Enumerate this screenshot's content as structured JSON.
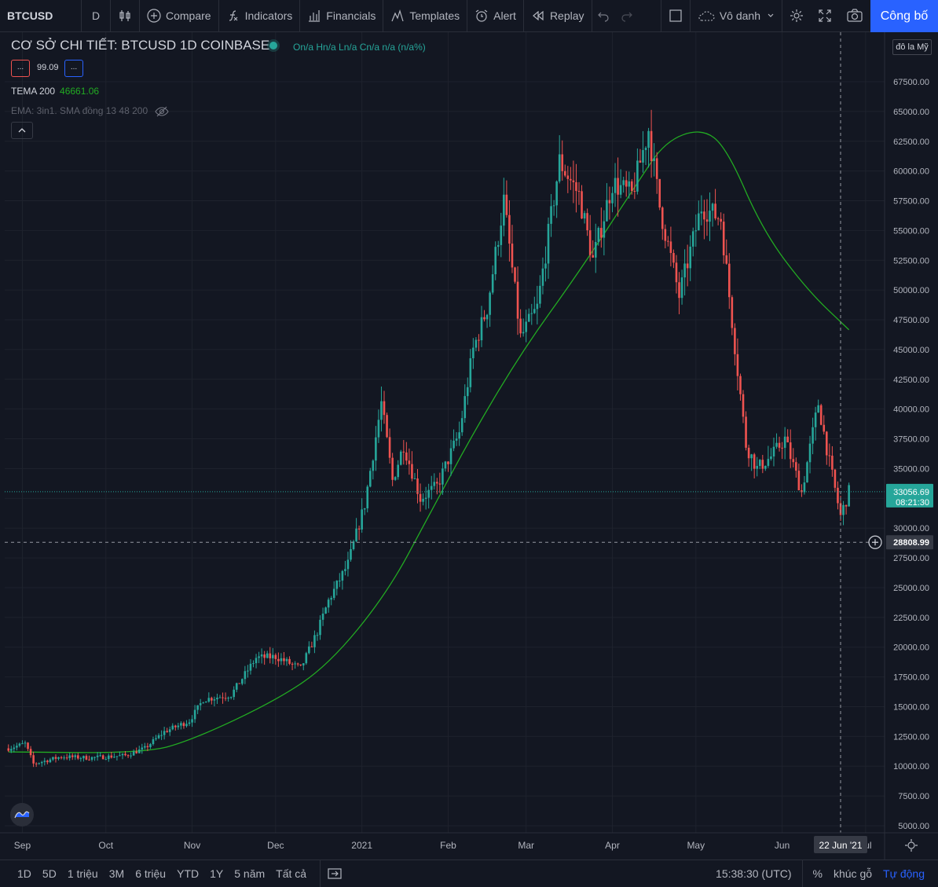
{
  "toolbar": {
    "symbol": "BTCUSD",
    "interval": "D",
    "compare": "Compare",
    "indicators": "Indicators",
    "financials": "Financials",
    "templates": "Templates",
    "alert": "Alert",
    "replay": "Replay",
    "layout_name": "Vô danh",
    "publish": "Công bố"
  },
  "legend": {
    "title": "CƠ SỞ CHI TIẾT: BTCUSD  1D  COINBASE",
    "ohlc": "On/a Hn/a Ln/a Cn/a n/a (n/a%)",
    "indicator_box1": "...",
    "indicator_box2": "...",
    "indicator_value": "99.09",
    "tema_label": "TEMA 200",
    "tema_value": "46661.06",
    "ema_label": "EMA: 3in1. SMA đồng 13 48 200"
  },
  "currency": "đô la Mỹ",
  "price_scale": {
    "ticks": [
      "67500.00",
      "65000.00",
      "62500.00",
      "60000.00",
      "57500.00",
      "55000.00",
      "52500.00",
      "50000.00",
      "47500.00",
      "45000.00",
      "42500.00",
      "40000.00",
      "37500.00",
      "35000.00",
      "32500.00",
      "30000.00",
      "27500.00",
      "25000.00",
      "22500.00",
      "20000.00",
      "17500.00",
      "15000.00",
      "12500.00",
      "10000.00",
      "7500.00",
      "5000.00"
    ],
    "last_price": "33056.69",
    "countdown": "08:21:30",
    "crosshair_price": "28808.99"
  },
  "time_scale": {
    "labels": [
      "Sep",
      "Oct",
      "Nov",
      "Dec",
      "2021",
      "Feb",
      "Mar",
      "Apr",
      "May",
      "Jun",
      "Jul"
    ],
    "crosshair_date": "22 Jun '21"
  },
  "bottombar": {
    "ranges": [
      "1D",
      "5D",
      "1 triệu",
      "3M",
      "6 triệu",
      "YTD",
      "1Y",
      "5 năm",
      "Tất cả"
    ],
    "clock": "15:38:30 (UTC)",
    "percent": "%",
    "log": "khúc gỗ",
    "auto": "Tự động"
  },
  "colors": {
    "up": "#26a69a",
    "down": "#ef5350",
    "tema": "#22ab22",
    "accent": "#2962ff"
  },
  "chart_data": {
    "type": "candlestick",
    "symbol": "BTCUSD",
    "timeframe": "1D",
    "exchange": "COINBASE",
    "ylim": [
      5000,
      67500
    ],
    "points": [
      [
        "2020-08-27",
        11500
      ],
      [
        "2020-09-02",
        11900
      ],
      [
        "2020-09-05",
        10200
      ],
      [
        "2020-09-15",
        10800
      ],
      [
        "2020-09-25",
        10700
      ],
      [
        "2020-10-08",
        10900
      ],
      [
        "2020-10-15",
        11500
      ],
      [
        "2020-10-22",
        12900
      ],
      [
        "2020-10-31",
        13800
      ],
      [
        "2020-11-05",
        15600
      ],
      [
        "2020-11-15",
        16000
      ],
      [
        "2020-11-24",
        19100
      ],
      [
        "2020-12-01",
        19200
      ],
      [
        "2020-12-10",
        18200
      ],
      [
        "2020-12-16",
        21300
      ],
      [
        "2020-12-20",
        23900
      ],
      [
        "2020-12-27",
        27000
      ],
      [
        "2021-01-02",
        32000
      ],
      [
        "2021-01-08",
        40500
      ],
      [
        "2021-01-12",
        34000
      ],
      [
        "2021-01-16",
        37000
      ],
      [
        "2021-01-22",
        32500
      ],
      [
        "2021-01-28",
        33500
      ],
      [
        "2021-02-05",
        38000
      ],
      [
        "2021-02-10",
        45000
      ],
      [
        "2021-02-15",
        48500
      ],
      [
        "2021-02-21",
        57500
      ],
      [
        "2021-02-27",
        46000
      ],
      [
        "2021-03-05",
        48500
      ],
      [
        "2021-03-13",
        60800
      ],
      [
        "2021-03-20",
        58000
      ],
      [
        "2021-03-25",
        52500
      ],
      [
        "2021-04-01",
        59000
      ],
      [
        "2021-04-08",
        58000
      ],
      [
        "2021-04-14",
        63500
      ],
      [
        "2021-04-18",
        57000
      ],
      [
        "2021-04-25",
        49500
      ],
      [
        "2021-05-03",
        57000
      ],
      [
        "2021-05-10",
        56000
      ],
      [
        "2021-05-13",
        49500
      ],
      [
        "2021-05-19",
        37000
      ],
      [
        "2021-05-23",
        35000
      ],
      [
        "2021-05-28",
        36000
      ],
      [
        "2021-06-02",
        37500
      ],
      [
        "2021-06-08",
        33000
      ],
      [
        "2021-06-14",
        40500
      ],
      [
        "2021-06-18",
        35500
      ],
      [
        "2021-06-22",
        31000
      ],
      [
        "2021-06-25",
        33056.69
      ]
    ],
    "tema200": [
      [
        "2020-08-27",
        11200
      ],
      [
        "2020-10-15",
        11100
      ],
      [
        "2020-11-01",
        12200
      ],
      [
        "2020-12-01",
        15500
      ],
      [
        "2020-12-20",
        18500
      ],
      [
        "2021-01-10",
        24500
      ],
      [
        "2021-01-25",
        31000
      ],
      [
        "2021-02-10",
        38000
      ],
      [
        "2021-02-28",
        45000
      ],
      [
        "2021-03-20",
        51500
      ],
      [
        "2021-04-10",
        59000
      ],
      [
        "2021-04-20",
        62500
      ],
      [
        "2021-05-03",
        63600
      ],
      [
        "2021-05-12",
        62000
      ],
      [
        "2021-05-25",
        55000
      ],
      [
        "2021-06-10",
        50000
      ],
      [
        "2021-06-25",
        46661.06
      ]
    ]
  }
}
